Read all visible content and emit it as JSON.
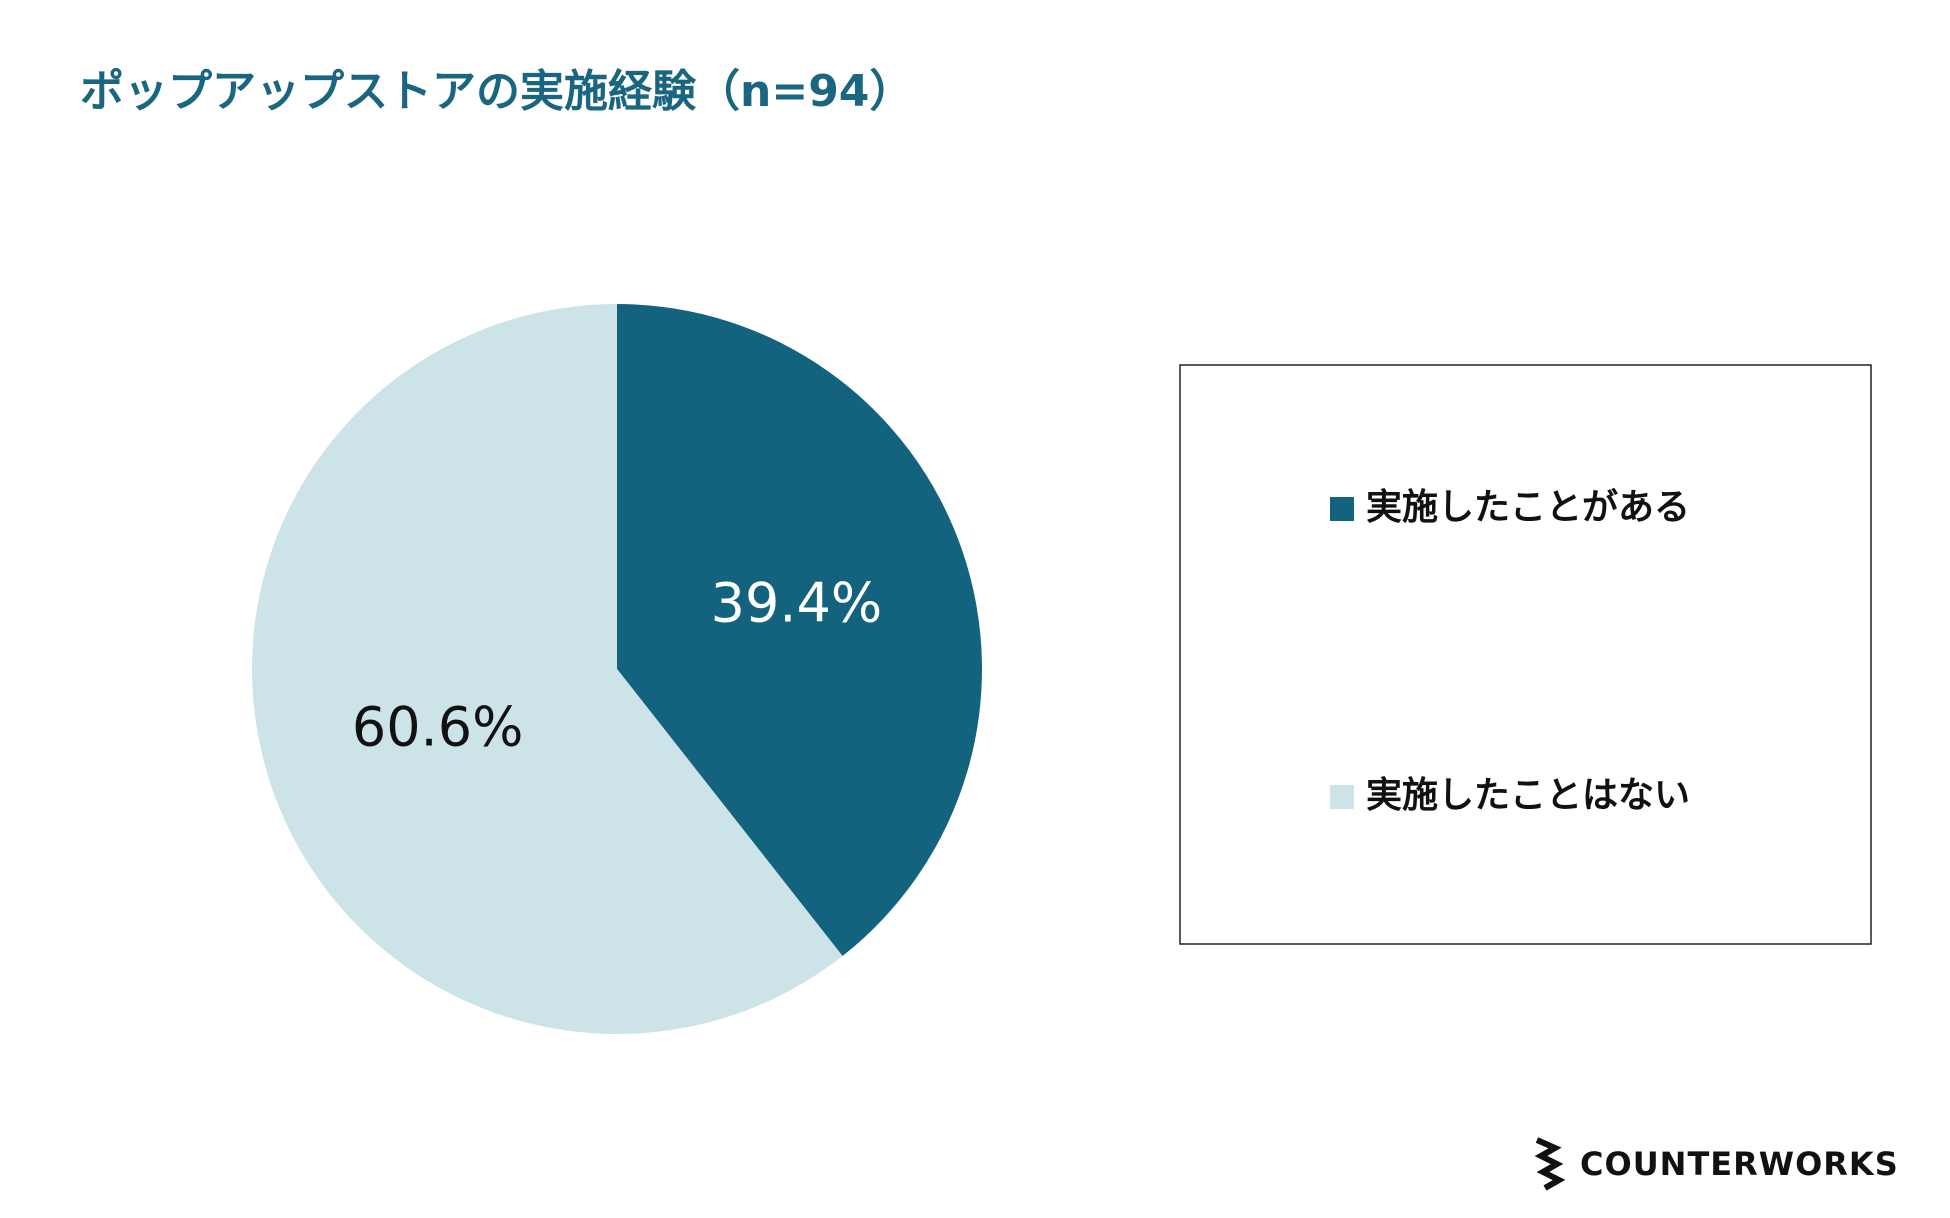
{
  "chart_data": {
    "type": "pie",
    "title": "ポップアップストアの実施経験（n=94）",
    "categories": [
      "実施したことがある",
      "実施したことはない"
    ],
    "values": [
      39.4,
      60.6
    ],
    "value_labels": [
      "39.4%",
      "60.6%"
    ],
    "colors": [
      "#13637f",
      "#cce4e8"
    ],
    "legend": "right"
  },
  "footer": {
    "logo": "COUNTERWORKS"
  }
}
